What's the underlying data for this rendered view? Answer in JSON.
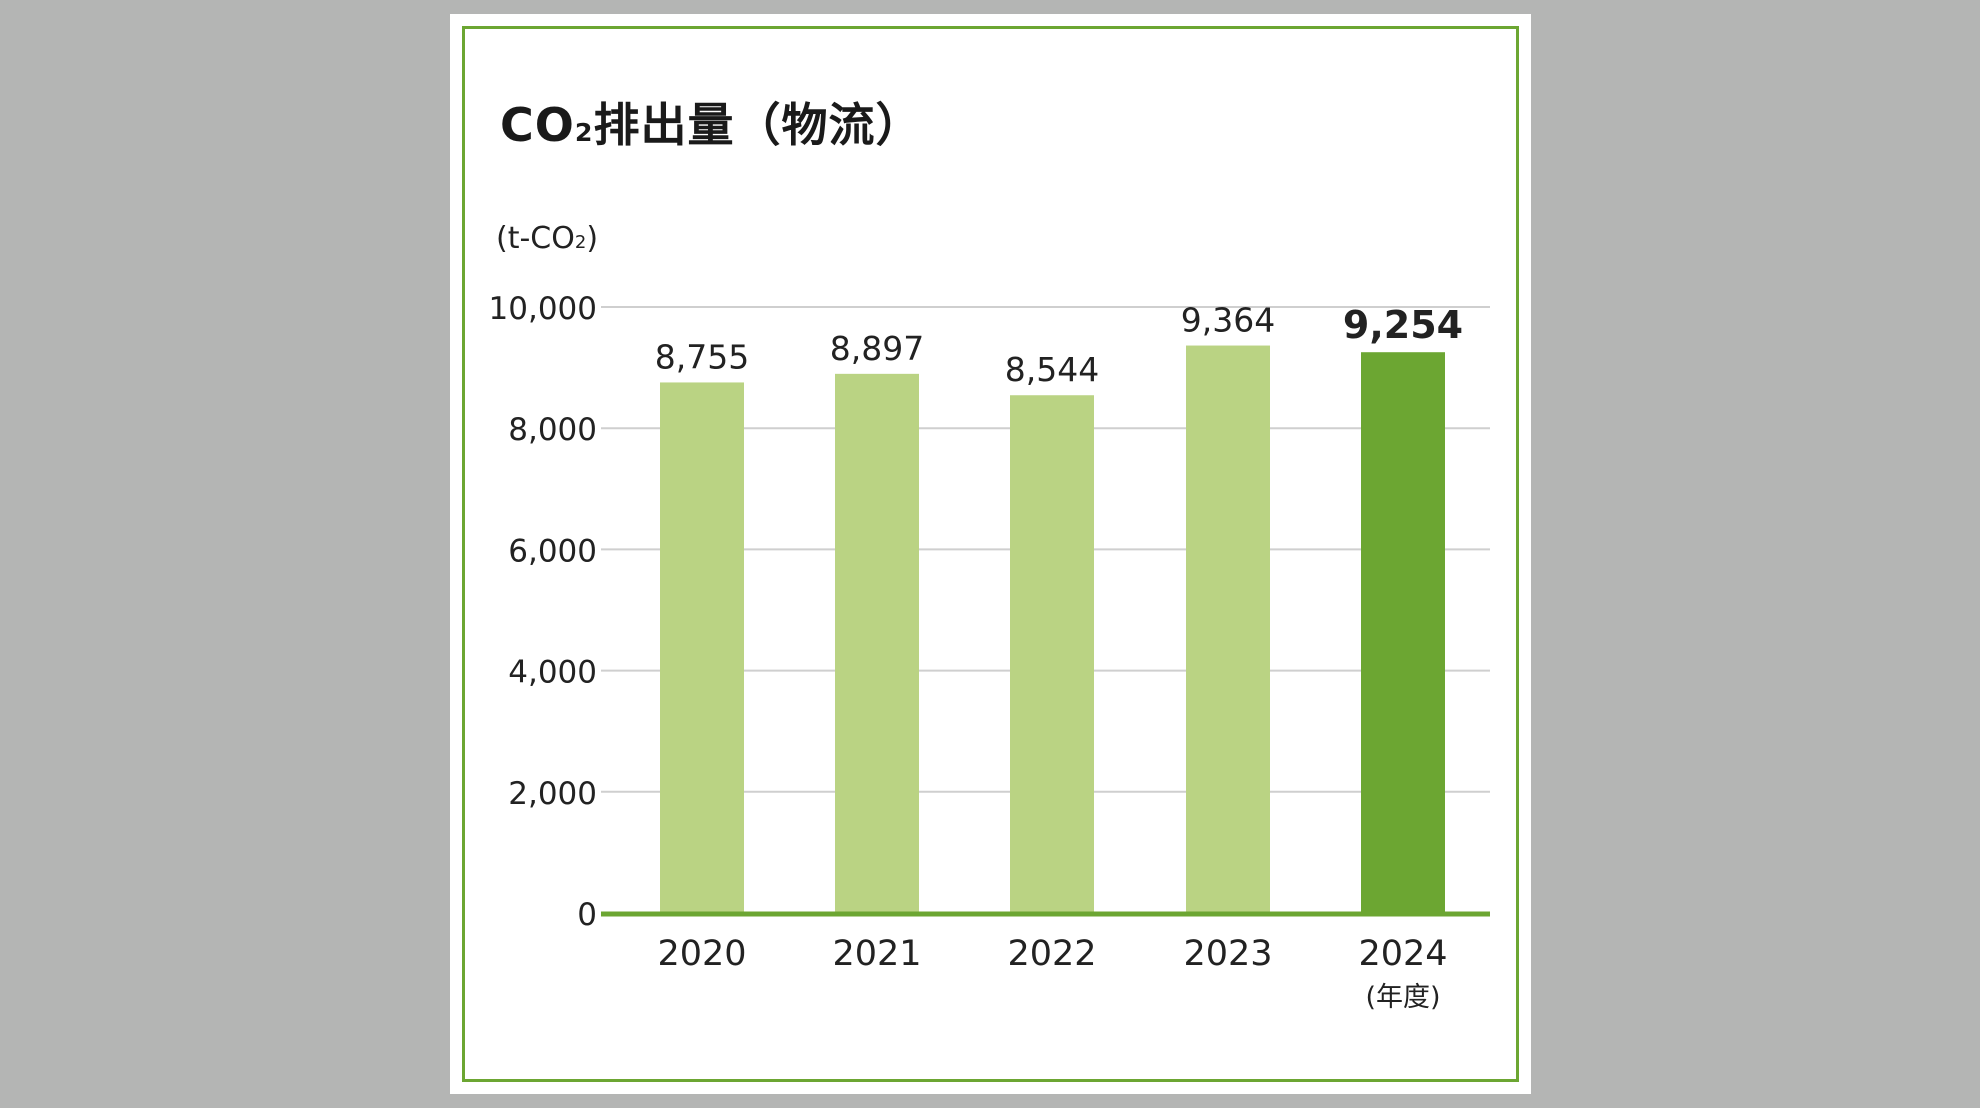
{
  "chart_data": {
    "type": "bar",
    "title": {
      "main_a": "CO",
      "main_sub": "2",
      "main_b": "排出量（物流）"
    },
    "ylabel": {
      "a": "(t-CO",
      "sub": "2",
      "b": ")"
    },
    "xlabel": "(年度)",
    "categories": [
      "2020",
      "2021",
      "2022",
      "2023",
      "2024"
    ],
    "values": [
      8755,
      8897,
      8544,
      9364,
      9254
    ],
    "value_labels": [
      "8,755",
      "8,897",
      "8,544",
      "9,364",
      "9,254"
    ],
    "highlight_index": 4,
    "ylim": [
      0,
      10000
    ],
    "yticks": [
      0,
      2000,
      4000,
      6000,
      8000,
      10000
    ],
    "ytick_labels": [
      "0",
      "2,000",
      "4,000",
      "6,000",
      "8,000",
      "10,000"
    ],
    "grid": true,
    "colors": {
      "bar": "#bad383",
      "highlight": "#6ca632",
      "axis": "#6ca632",
      "grid": "#cfcfcf",
      "frame": "#6ca632"
    }
  }
}
